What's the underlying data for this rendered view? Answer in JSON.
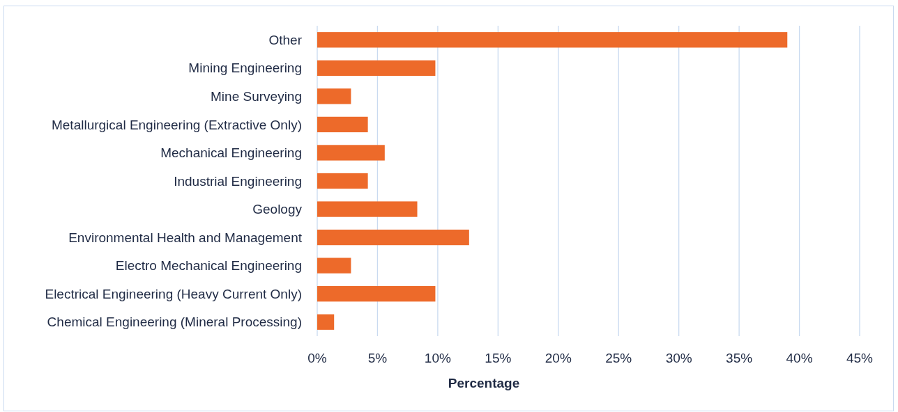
{
  "chart_data": {
    "type": "bar",
    "orientation": "horizontal",
    "xlabel": "Percentage",
    "categories": [
      "Other",
      "Mining Engineering",
      "Mine Surveying",
      "Metallurgical Engineering (Extractive Only)",
      "Mechanical Engineering",
      "Industrial Engineering",
      "Geology",
      "Environmental Health and Management",
      "Electro Mechanical Engineering",
      "Electrical Engineering (Heavy Current Only)",
      "Chemical Engineering (Mineral Processing)"
    ],
    "values": [
      39,
      9.8,
      2.8,
      4.2,
      5.6,
      4.2,
      8.3,
      12.6,
      2.8,
      9.8,
      1.4
    ],
    "color": "#ed6a2a",
    "xlim": [
      0,
      45
    ],
    "xticks": [
      {
        "value": 0,
        "label": "0%"
      },
      {
        "value": 5,
        "label": "5%"
      },
      {
        "value": 10,
        "label": "10%"
      },
      {
        "value": 15,
        "label": "15%"
      },
      {
        "value": 20,
        "label": "20%"
      },
      {
        "value": 25,
        "label": "25%"
      },
      {
        "value": 30,
        "label": "30%"
      },
      {
        "value": 35,
        "label": "35%"
      },
      {
        "value": 40,
        "label": "40%"
      },
      {
        "value": 45,
        "label": "45%"
      }
    ],
    "grid": "x"
  }
}
